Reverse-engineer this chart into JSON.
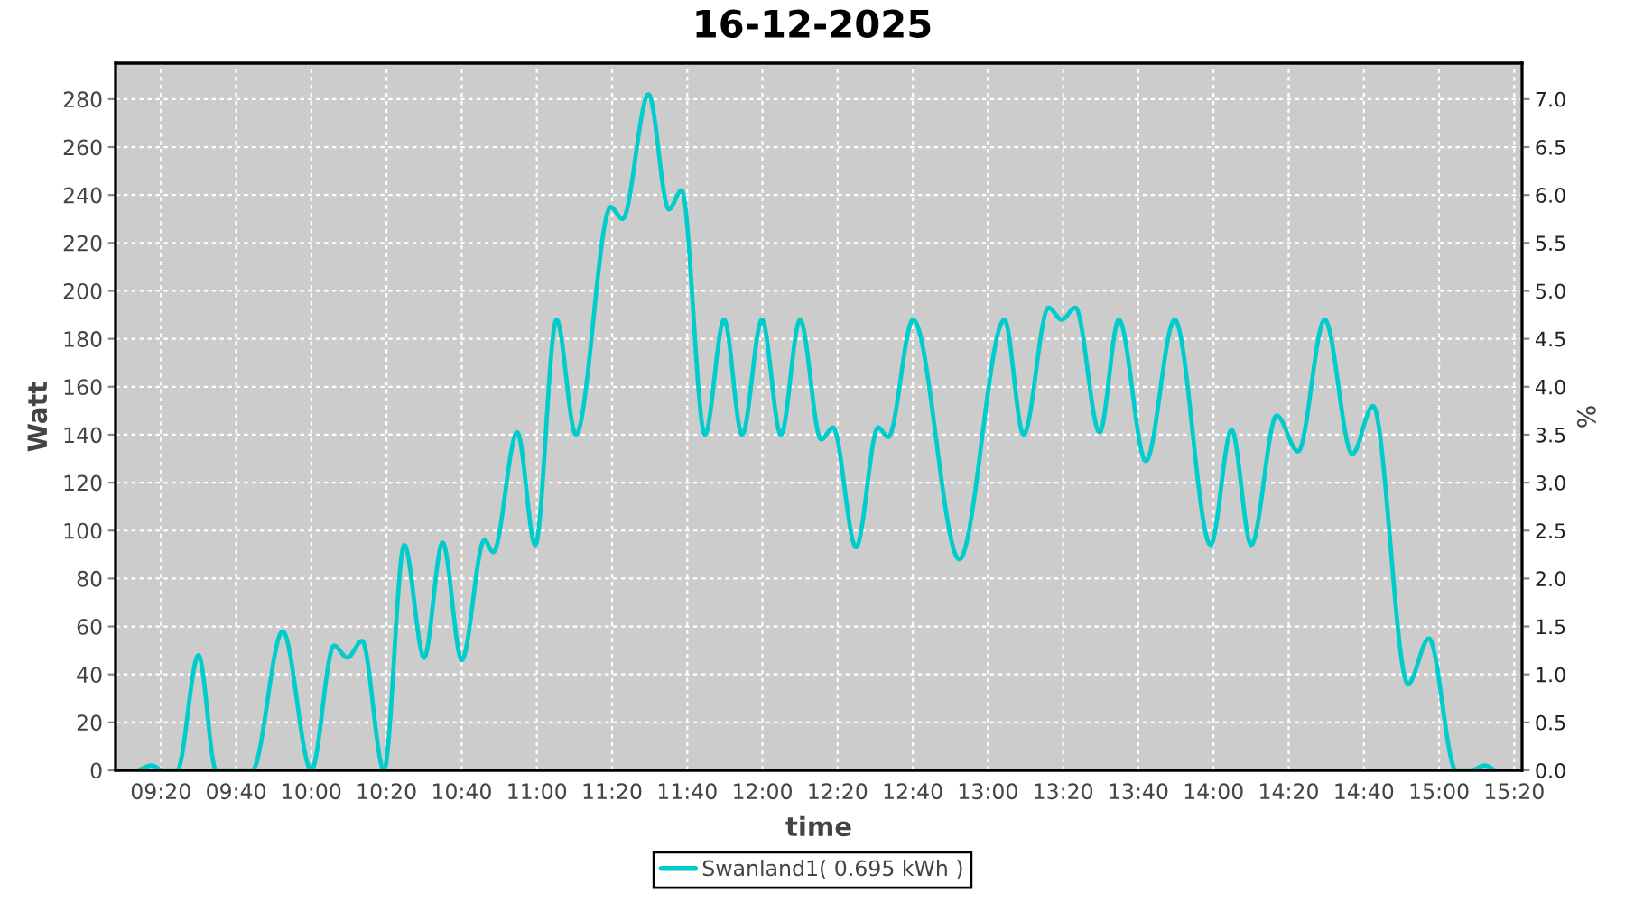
{
  "chart_data": {
    "type": "line",
    "title": "16-12-2025",
    "xlabel": "time",
    "ylabel": "Watt",
    "y2label": "%",
    "x": [
      9.233,
      9.292,
      9.342,
      9.405,
      9.5,
      9.578,
      9.738,
      9.873,
      10.0,
      10.1,
      10.16,
      10.225,
      10.322,
      10.412,
      10.5,
      10.582,
      10.667,
      10.767,
      10.807,
      10.913,
      10.993,
      11.087,
      11.173,
      11.327,
      11.38,
      11.495,
      11.585,
      11.642,
      11.745,
      11.83,
      11.91,
      11.998,
      12.082,
      12.167,
      12.26,
      12.313,
      12.415,
      12.513,
      12.558,
      12.668,
      12.873,
      13.073,
      13.158,
      13.268,
      13.327,
      13.388,
      13.495,
      13.58,
      13.7,
      13.828,
      13.987,
      14.08,
      14.167,
      14.28,
      14.375,
      14.493,
      14.615,
      14.707,
      14.862,
      14.955,
      15.075,
      15.142,
      15.203,
      15.248
    ],
    "series": [
      {
        "name": "Swanland1( 0.695 kWh )",
        "color": "#00cccc",
        "values": [
          0,
          2,
          0,
          0,
          48,
          0,
          0,
          58,
          0,
          52,
          47,
          54,
          0,
          94,
          47,
          95,
          46,
          96,
          91,
          141,
          94,
          188,
          140,
          235,
          230,
          282,
          234,
          242,
          140,
          188,
          140,
          188,
          140,
          188,
          138,
          143,
          93,
          143,
          139,
          188,
          88,
          188,
          140,
          193,
          188,
          193,
          141,
          188,
          129,
          188,
          94,
          142,
          94,
          148,
          133,
          188,
          132,
          152,
          36,
          55,
          0,
          0,
          2,
          0
        ]
      }
    ],
    "xlim": [
      9.132,
      15.368
    ],
    "xticks": [
      {
        "value": 9.3333,
        "label": "09:20"
      },
      {
        "value": 9.6667,
        "label": "09:40"
      },
      {
        "value": 10,
        "label": "10:00"
      },
      {
        "value": 10.3333,
        "label": "10:20"
      },
      {
        "value": 10.6667,
        "label": "10:40"
      },
      {
        "value": 11,
        "label": "11:00"
      },
      {
        "value": 11.3333,
        "label": "11:20"
      },
      {
        "value": 11.6667,
        "label": "11:40"
      },
      {
        "value": 12,
        "label": "12:00"
      },
      {
        "value": 12.3333,
        "label": "12:20"
      },
      {
        "value": 12.6667,
        "label": "12:40"
      },
      {
        "value": 13,
        "label": "13:00"
      },
      {
        "value": 13.3333,
        "label": "13:20"
      },
      {
        "value": 13.6667,
        "label": "13:40"
      },
      {
        "value": 14,
        "label": "14:00"
      },
      {
        "value": 14.3333,
        "label": "14:20"
      },
      {
        "value": 14.6667,
        "label": "14:40"
      },
      {
        "value": 15,
        "label": "15:00"
      },
      {
        "value": 15.3333,
        "label": "15:20"
      }
    ],
    "ylim": [
      0,
      295
    ],
    "yticks": [
      0,
      20,
      40,
      60,
      80,
      100,
      120,
      140,
      160,
      180,
      200,
      220,
      240,
      260,
      280
    ],
    "y2lim": [
      0,
      7.375
    ],
    "y2ticks": [
      {
        "value": 0,
        "label": "0.0"
      },
      0.5,
      {
        "value": 1,
        "label": "1.0"
      },
      1.5,
      {
        "value": 2,
        "label": "2.0"
      },
      2.5,
      {
        "value": 3,
        "label": "3.0"
      },
      3.5,
      {
        "value": 4,
        "label": "4.0"
      },
      4.5,
      {
        "value": 5,
        "label": "5.0"
      },
      5.5,
      {
        "value": 6,
        "label": "6.0"
      },
      6.5,
      {
        "value": 7,
        "label": "7.0"
      }
    ],
    "grid": true,
    "legend": "bottom",
    "line_style": "solid"
  }
}
